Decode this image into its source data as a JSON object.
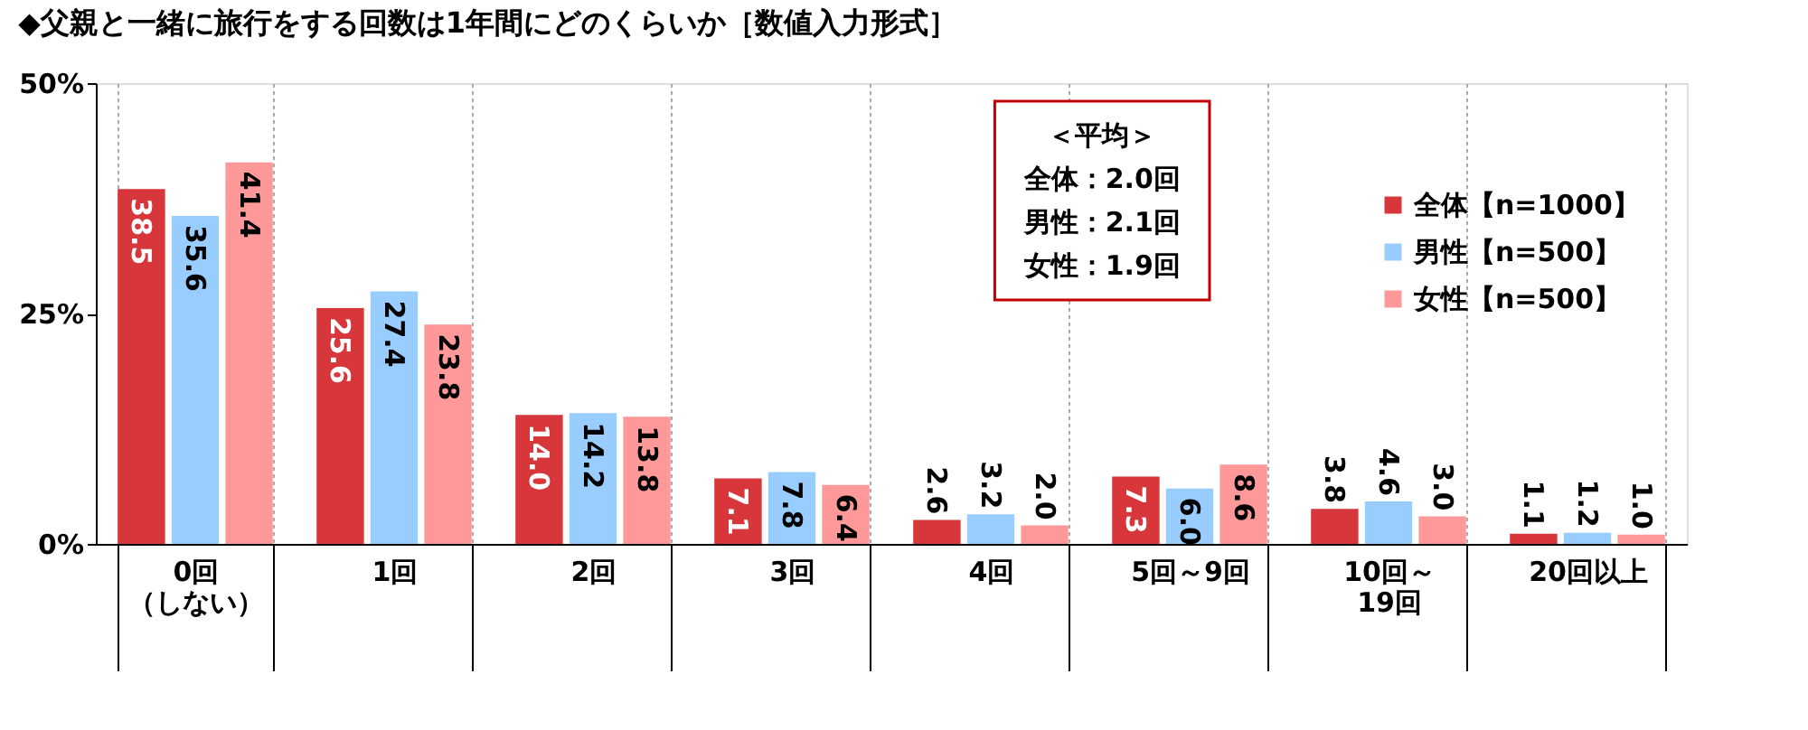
{
  "chart_data": {
    "type": "bar",
    "title": "◆父親と一緒に旅行をする回数は1年間にどのくらいか［数値入力形式］",
    "categories": [
      "0回（しない）",
      "1回",
      "2回",
      "3回",
      "4回",
      "5回～9回",
      "10回～19回",
      "20回以上"
    ],
    "series": [
      {
        "name": "全体【n=1000】",
        "color": "#d7373a",
        "values": [
          38.5,
          25.6,
          14.0,
          7.1,
          2.6,
          7.3,
          3.8,
          1.1
        ],
        "value_labels": [
          "38.5",
          "25.6",
          "14.0",
          "7.1",
          "2.6",
          "7.3",
          "3.8",
          "1.1"
        ]
      },
      {
        "name": "男性【n=500】",
        "color": "#99ccff",
        "values": [
          35.6,
          27.4,
          14.2,
          7.8,
          3.2,
          6.0,
          4.6,
          1.2
        ],
        "value_labels": [
          "35.6",
          "27.4",
          "14.2",
          "7.8",
          "3.2",
          "6.0",
          "4.6",
          "1.2"
        ]
      },
      {
        "name": "女性【n=500】",
        "color": "#ff9999",
        "values": [
          41.4,
          23.8,
          13.8,
          6.4,
          2.0,
          8.6,
          3.0,
          1.0
        ],
        "value_labels": [
          "41.4",
          "23.8",
          "13.8",
          "6.4",
          "2.0",
          "8.6",
          "3.0",
          "1.0"
        ]
      }
    ],
    "ylim": [
      0,
      50
    ],
    "yticks": [
      {
        "value": 0,
        "label": "0%"
      },
      {
        "value": 25,
        "label": "25%"
      },
      {
        "value": 50,
        "label": "50%"
      }
    ],
    "grid": "x",
    "legend": "top right",
    "annotations": [
      "＜平均＞",
      "全体：2.0回",
      "男性：2.1回",
      "女性：1.9回"
    ]
  }
}
